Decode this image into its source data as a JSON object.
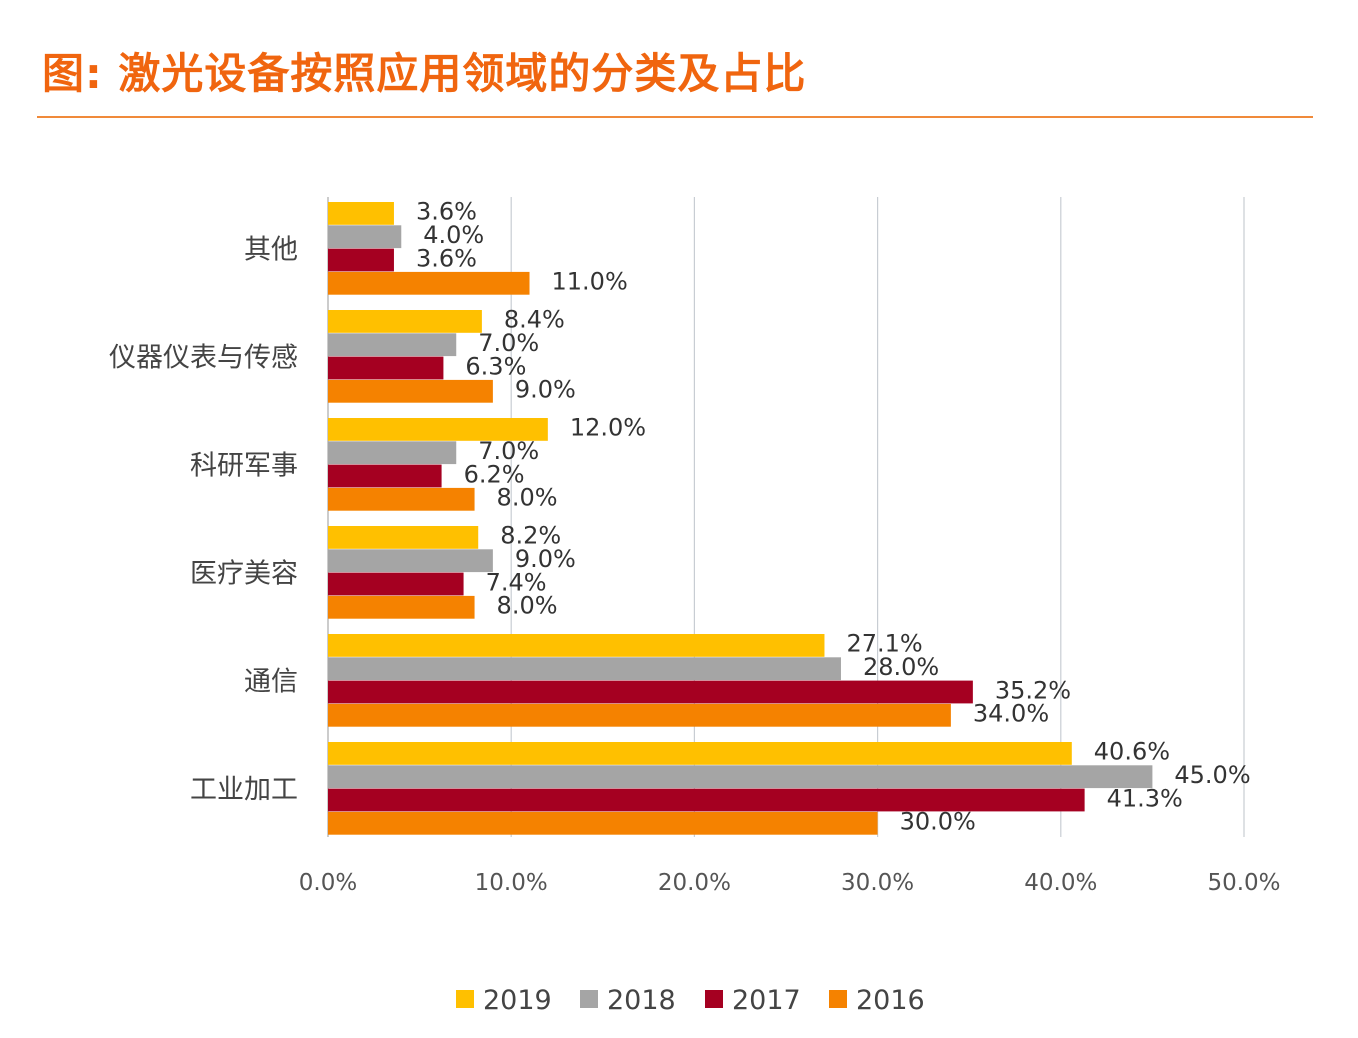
{
  "title": "图: 激光设备按照应用领域的分类及占比",
  "chart_data": {
    "type": "bar",
    "orientation": "horizontal",
    "title": "图: 激光设备按照应用领域的分类及占比",
    "xlabel": "",
    "ylabel": "",
    "categories": [
      "其他",
      "仪器仪表与传感",
      "科研军事",
      "医疗美容",
      "通信",
      "工业加工"
    ],
    "series": [
      {
        "name": "2019",
        "color": "#FFC000",
        "values": [
          3.6,
          8.4,
          12.0,
          8.2,
          27.1,
          40.6
        ]
      },
      {
        "name": "2018",
        "color": "#A5A5A5",
        "values": [
          4.0,
          7.0,
          7.0,
          9.0,
          28.0,
          45.0
        ]
      },
      {
        "name": "2017",
        "color": "#A50021",
        "values": [
          3.6,
          6.3,
          6.2,
          7.4,
          35.2,
          41.3
        ]
      },
      {
        "name": "2016",
        "color": "#F58200",
        "values": [
          11.0,
          9.0,
          8.0,
          8.0,
          34.0,
          30.0
        ]
      }
    ],
    "data_labels": [
      [
        "3.6%",
        "8.4%",
        "12.0%",
        "8.2%",
        "27.1%",
        "40.6%"
      ],
      [
        "4.0%",
        "7.0%",
        "7.0%",
        "9.0%",
        "28.0%",
        "45.0%"
      ],
      [
        "3.6%",
        "6.3%",
        "6.2%",
        "7.4%",
        "35.2%",
        "41.3%"
      ],
      [
        "11.0%",
        "9.0%",
        "8.0%",
        "8.0%",
        "34.0%",
        "30.0%"
      ]
    ],
    "xlim": [
      0,
      50
    ],
    "xticks": [
      0,
      10,
      20,
      30,
      40,
      50
    ],
    "xtick_labels": [
      "0.0%",
      "10.0%",
      "20.0%",
      "30.0%",
      "40.0%",
      "50.0%"
    ],
    "grid": "vertical",
    "legend": "bottom"
  }
}
